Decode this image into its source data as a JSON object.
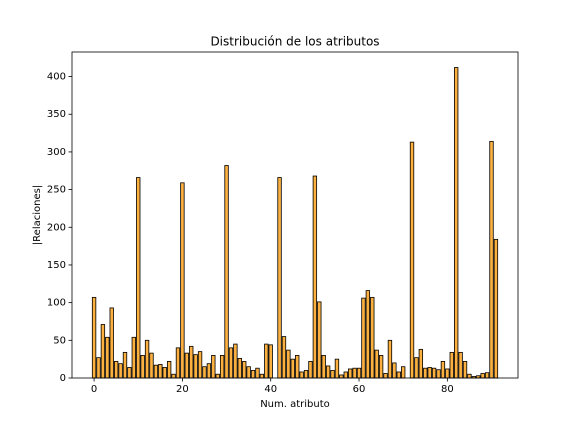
{
  "chart_data": {
    "type": "bar",
    "title": "Distribución de los atributos",
    "xlabel": "Num. atributo",
    "ylabel": "|Relaciones|",
    "x": [
      0,
      1,
      2,
      3,
      4,
      5,
      6,
      7,
      8,
      9,
      10,
      11,
      12,
      13,
      14,
      15,
      16,
      17,
      18,
      19,
      20,
      21,
      22,
      23,
      24,
      25,
      26,
      27,
      28,
      29,
      30,
      31,
      32,
      33,
      34,
      35,
      36,
      37,
      38,
      39,
      40,
      41,
      42,
      43,
      44,
      45,
      46,
      47,
      48,
      49,
      50,
      51,
      52,
      53,
      54,
      55,
      56,
      57,
      58,
      59,
      60,
      61,
      62,
      63,
      64,
      65,
      66,
      67,
      68,
      69,
      70,
      71,
      72,
      73,
      74,
      75,
      76,
      77,
      78,
      79,
      80,
      81,
      82,
      83,
      84,
      85,
      86,
      87,
      88,
      89,
      90,
      91
    ],
    "values": [
      107,
      27,
      71,
      54,
      93,
      22,
      19,
      34,
      14,
      54,
      266,
      30,
      50,
      33,
      17,
      18,
      14,
      22,
      5,
      40,
      259,
      33,
      42,
      31,
      35,
      15,
      19,
      30,
      5,
      30,
      282,
      40,
      45,
      26,
      22,
      15,
      10,
      13,
      5,
      45,
      44,
      0,
      266,
      55,
      37,
      25,
      30,
      8,
      10,
      22,
      268,
      101,
      30,
      16,
      10,
      25,
      4,
      8,
      12,
      13,
      13,
      106,
      116,
      107,
      37,
      30,
      6,
      50,
      20,
      8,
      15,
      0,
      313,
      27,
      38,
      13,
      14,
      13,
      11,
      22,
      12,
      34,
      412,
      34,
      22,
      5,
      2,
      3,
      6,
      7,
      314,
      184
    ],
    "color": "#fbb040",
    "edgecolor": "#000000",
    "xlim": [
      -5,
      96
    ],
    "xticks": [
      0,
      20,
      40,
      60,
      80
    ],
    "ylim": [
      0,
      432.6
    ],
    "yticks": [
      0,
      50,
      100,
      150,
      200,
      250,
      300,
      350,
      400
    ],
    "grid": false
  }
}
